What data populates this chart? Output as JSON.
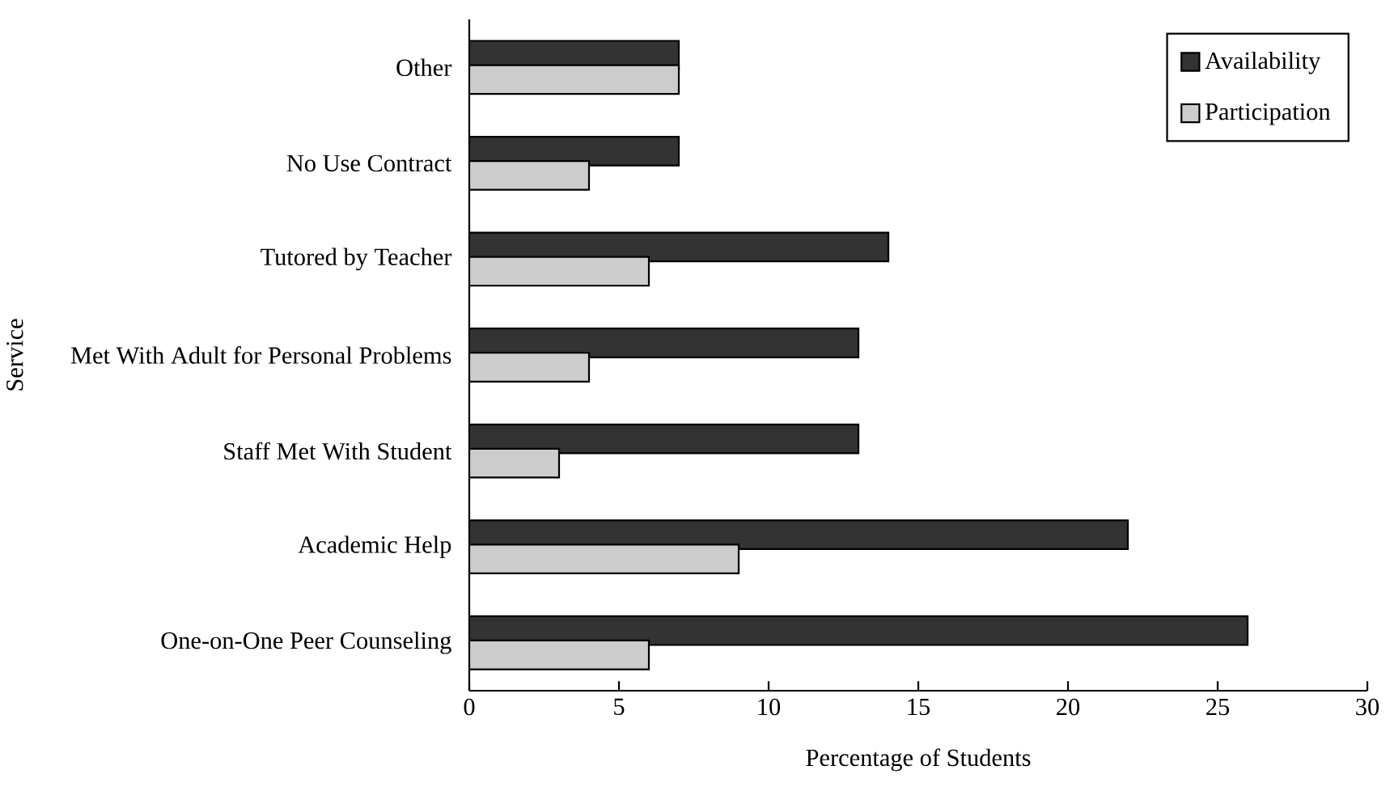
{
  "chart_data": {
    "type": "bar",
    "orientation": "horizontal",
    "categories": [
      "Other",
      "No Use Contract",
      "Tutored by Teacher",
      "Met With Adult for Personal Problems",
      "Staff Met With Student",
      "Academic Help",
      "One-on-One Peer Counseling"
    ],
    "series": [
      {
        "name": "Availability",
        "color": "#333333",
        "values": [
          7,
          7,
          14,
          13,
          13,
          22,
          26
        ]
      },
      {
        "name": "Participation",
        "color": "#cccccc",
        "values": [
          7,
          4,
          6,
          4,
          3,
          9,
          6
        ]
      }
    ],
    "xlabel": "Percentage of Students",
    "ylabel": "Service",
    "xlim": [
      0,
      30
    ],
    "xticks": [
      0,
      5,
      10,
      15,
      20,
      25,
      30
    ],
    "legend": "top right",
    "grid": false
  }
}
